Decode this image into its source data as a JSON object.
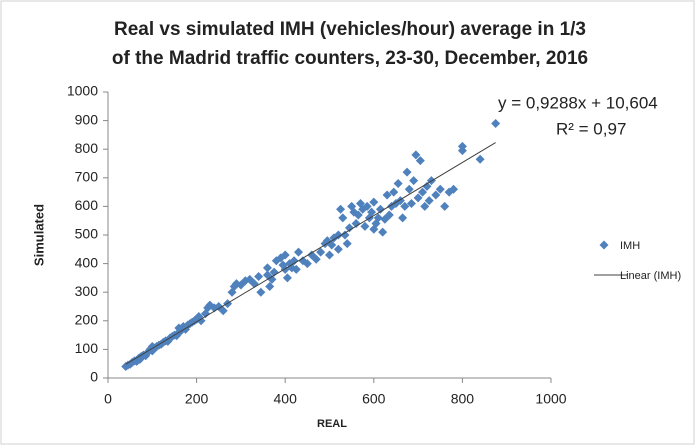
{
  "chart_data": {
    "type": "scatter",
    "title": [
      "Real vs simulated IMH (vehicles/hour) average in 1/3",
      "of the Madrid traffic counters, 23-30, December, 2016"
    ],
    "x_label": "REAL",
    "y_label": "Simulated",
    "xlim": [
      0,
      1000
    ],
    "xticks": [
      0,
      200,
      400,
      600,
      800,
      1000
    ],
    "ylim": [
      0,
      1000
    ],
    "yticks": [
      0,
      100,
      200,
      300,
      400,
      500,
      600,
      700,
      800,
      900,
      1000
    ],
    "grid": false,
    "legend": "right",
    "series": [
      {
        "name": "IMH",
        "color": "#4f81bd",
        "x": [
          40,
          45,
          50,
          55,
          60,
          65,
          70,
          72,
          75,
          80,
          85,
          90,
          95,
          100,
          100,
          105,
          110,
          115,
          120,
          125,
          130,
          135,
          140,
          145,
          150,
          155,
          160,
          160,
          165,
          170,
          175,
          180,
          185,
          190,
          195,
          200,
          205,
          210,
          220,
          225,
          230,
          240,
          250,
          260,
          270,
          280,
          285,
          290,
          300,
          310,
          320,
          330,
          340,
          345,
          360,
          360,
          365,
          370,
          375,
          380,
          390,
          395,
          400,
          400,
          405,
          410,
          415,
          420,
          425,
          430,
          440,
          450,
          460,
          470,
          480,
          490,
          495,
          500,
          505,
          510,
          520,
          520,
          525,
          530,
          535,
          540,
          545,
          550,
          555,
          560,
          565,
          570,
          575,
          580,
          585,
          590,
          595,
          600,
          600,
          605,
          610,
          615,
          620,
          625,
          630,
          635,
          640,
          645,
          650,
          655,
          660,
          665,
          670,
          675,
          680,
          685,
          690,
          695,
          700,
          705,
          710,
          715,
          720,
          725,
          730,
          740,
          750,
          760,
          770,
          780,
          800,
          800,
          840,
          875
        ],
        "values": [
          40,
          45,
          48,
          55,
          60,
          58,
          70,
          65,
          75,
          80,
          78,
          90,
          100,
          95,
          110,
          105,
          110,
          115,
          118,
          125,
          130,
          128,
          140,
          145,
          150,
          148,
          160,
          175,
          165,
          180,
          170,
          185,
          190,
          195,
          200,
          205,
          215,
          200,
          225,
          245,
          255,
          245,
          250,
          235,
          260,
          300,
          320,
          330,
          325,
          340,
          345,
          330,
          355,
          300,
          385,
          360,
          320,
          345,
          370,
          410,
          420,
          395,
          430,
          380,
          350,
          400,
          385,
          410,
          380,
          440,
          410,
          400,
          430,
          415,
          440,
          470,
          480,
          430,
          465,
          490,
          500,
          450,
          590,
          560,
          500,
          470,
          525,
          600,
          580,
          540,
          570,
          610,
          590,
          530,
          600,
          560,
          580,
          520,
          615,
          540,
          560,
          590,
          510,
          555,
          640,
          570,
          600,
          650,
          610,
          680,
          620,
          560,
          600,
          720,
          660,
          610,
          690,
          780,
          630,
          760,
          650,
          600,
          670,
          620,
          690,
          640,
          660,
          600,
          650,
          660,
          810,
          795,
          765,
          890
        ]
      }
    ],
    "trendline": {
      "name": "Linear (IMH)",
      "slope": 0.9288,
      "intercept": 10.604,
      "color": "#404040",
      "equation": "y = 0,9288x + 10,604",
      "r2": "R² = 0,97"
    }
  }
}
